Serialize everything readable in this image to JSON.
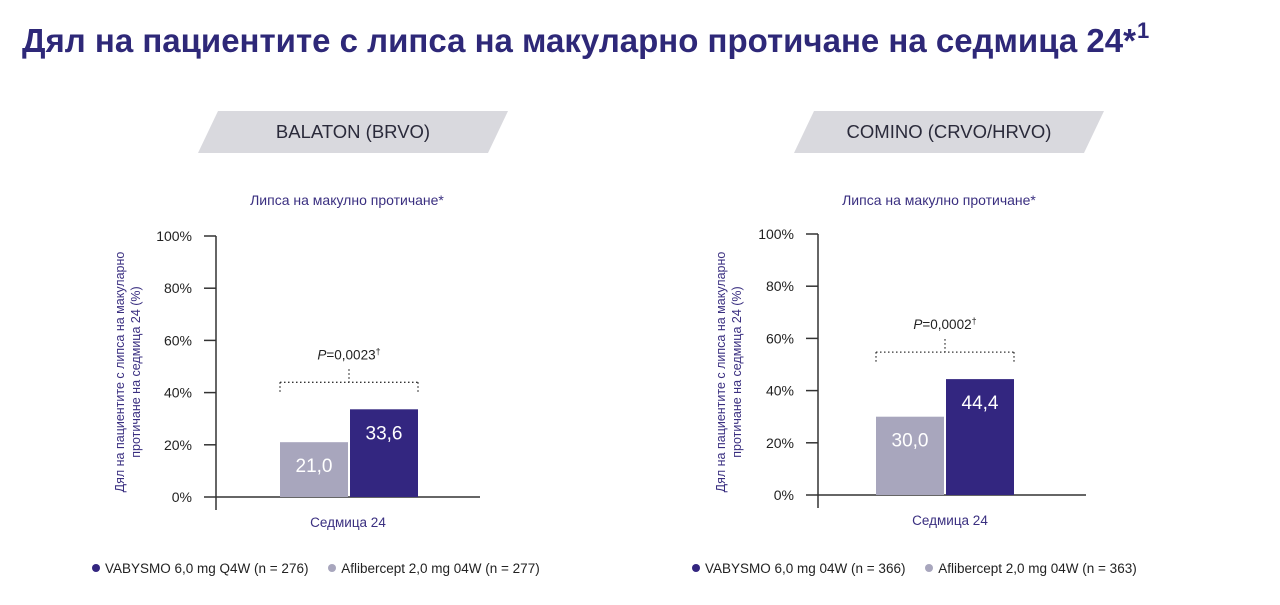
{
  "title": {
    "text": "Дял на пациентите с липса на макуларно протичане на седмица 24*",
    "sup": "1"
  },
  "colors": {
    "vabysmo": "#332680",
    "aflibercept": "#a8a6bd",
    "banner": "#d9d9de",
    "text": "#3a2f80"
  },
  "panels": [
    {
      "banner": "BALATON (BRVO)",
      "legend": {
        "vabysmo": "VABYSMO 6,0 mg Q4W (n = 276)",
        "aflibercept": "Aflibercept 2,0 mg 04W (n = 277)"
      }
    },
    {
      "banner": "COMINO (CRVO/HRVO)",
      "legend": {
        "vabysmo": "VABYSMO 6,0 mg 04W (n = 366)",
        "aflibercept": "Aflibercept 2,0 mg 04W (n = 363)"
      }
    }
  ],
  "chart_data": [
    {
      "type": "bar",
      "title": "Липса на макулно протичане*",
      "ylabel": "Дял на пациентите с липса на макуларно протичане на седмица 24 (%)",
      "xlabel": "Седмица 24",
      "categories": [
        "Седмица 24"
      ],
      "ylim": [
        0,
        100
      ],
      "yticks": [
        "0%",
        "20%",
        "40%",
        "60%",
        "80%",
        "100%"
      ],
      "series": [
        {
          "name": "Aflibercept 2,0 mg 04W (n = 277)",
          "values": [
            21.0
          ],
          "label": "21,0"
        },
        {
          "name": "VABYSMO 6,0 mg Q4W (n = 276)",
          "values": [
            33.6
          ],
          "label": "33,6"
        }
      ],
      "annotation": {
        "p_prefix": "P",
        "p_value": "=0,0023",
        "p_sup": "†"
      }
    },
    {
      "type": "bar",
      "title": "Липса на макулно протичане*",
      "ylabel": "Дял на пациентите с липса на макуларно протичане на седмица 24 (%)",
      "xlabel": "Седмица 24",
      "categories": [
        "Седмица 24"
      ],
      "ylim": [
        0,
        100
      ],
      "yticks": [
        "0%",
        "20%",
        "40%",
        "60%",
        "80%",
        "100%"
      ],
      "series": [
        {
          "name": "Aflibercept 2,0 mg 04W (n = 363)",
          "values": [
            30.0
          ],
          "label": "30,0"
        },
        {
          "name": "VABYSMO 6,0 mg 04W (n = 366)",
          "values": [
            44.4
          ],
          "label": "44,4"
        }
      ],
      "annotation": {
        "p_prefix": "P",
        "p_value": "=0,0002",
        "p_sup": "†"
      }
    }
  ]
}
